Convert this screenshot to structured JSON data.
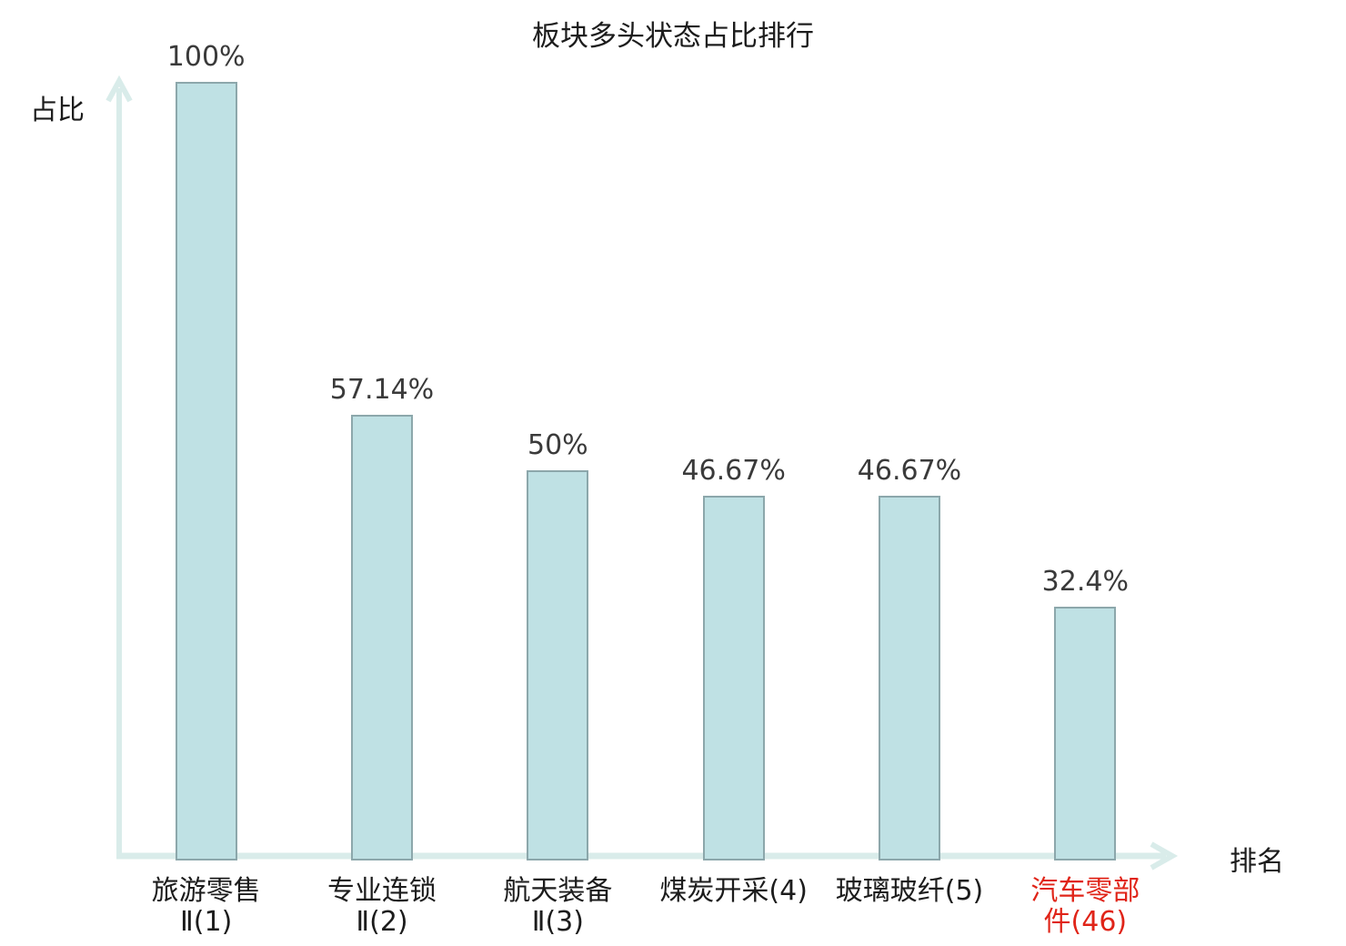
{
  "title": "板块多头状态占比排行",
  "axes": {
    "y_label": "占比",
    "x_label": "排名"
  },
  "chart_data": {
    "type": "bar",
    "title": "板块多头状态占比排行",
    "xlabel": "排名",
    "ylabel": "占比",
    "ylim": [
      0,
      100
    ],
    "grid": false,
    "legend": "none",
    "categories": [
      "旅游零售Ⅱ(1)",
      "专业连锁Ⅱ(2)",
      "航天装备Ⅱ(3)",
      "煤炭开采(4)",
      "玻璃玻纤(5)",
      "汽车零部件(46)"
    ],
    "category_lines": [
      [
        "旅游零售",
        "Ⅱ(1)"
      ],
      [
        "专业连锁",
        "Ⅱ(2)"
      ],
      [
        "航天装备",
        "Ⅱ(3)"
      ],
      [
        "煤炭开采(4)"
      ],
      [
        "玻璃玻纤(5)"
      ],
      [
        "汽车零部",
        "件(46)"
      ]
    ],
    "values": [
      100,
      57.14,
      50,
      46.67,
      46.67,
      32.4
    ],
    "value_labels": [
      "100%",
      "57.14%",
      "50%",
      "46.67%",
      "46.67%",
      "32.4%"
    ],
    "highlight_index": 5,
    "colors": {
      "bar_fill": "#bfe1e4",
      "bar_border": "#8ca7ab",
      "axis": "#d9ecea",
      "value_label": "#3a3a3a",
      "category_label": "#1c1c1c",
      "highlight": "#e02418"
    }
  }
}
